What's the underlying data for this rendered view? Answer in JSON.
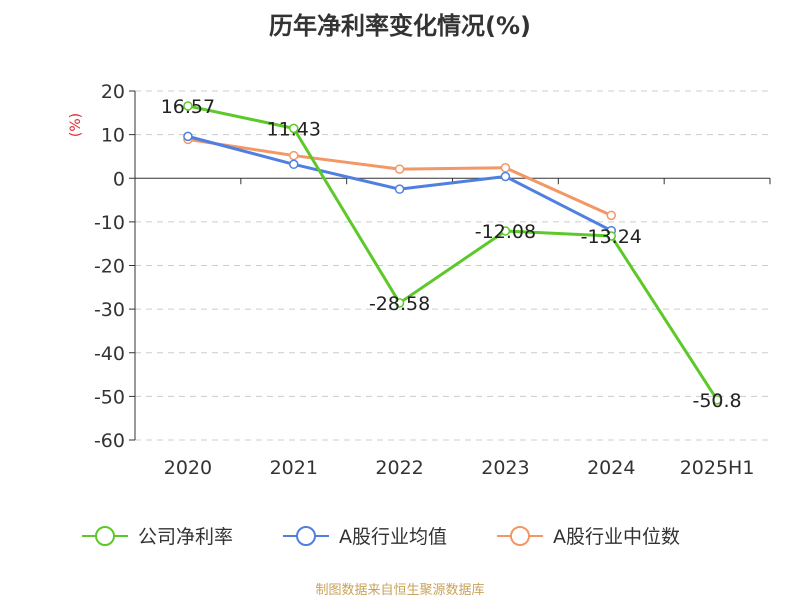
{
  "source": "制图数据来自恒生聚源数据库",
  "colors": {
    "axis": "#333333",
    "grid": "#cccccc"
  },
  "chart_data": {
    "type": "line",
    "title": "历年净利率变化情况(%)",
    "ylabel": "(%)",
    "xlabel": "",
    "categories": [
      "2020",
      "2021",
      "2022",
      "2023",
      "2024",
      "2025H1"
    ],
    "ylim": [
      -60,
      20
    ],
    "yticks": [
      20,
      10,
      0,
      -10,
      -20,
      -30,
      -40,
      -50,
      -60
    ],
    "grid": true,
    "legend_position": "bottom",
    "series": [
      {
        "name": "公司净利率",
        "color": "#5cc928",
        "values": [
          16.57,
          11.43,
          -28.58,
          -12.08,
          -13.24,
          -50.8
        ],
        "labels": [
          "16.57",
          "11.43",
          "-28.58",
          "-12.08",
          "-13.24",
          "-50.8"
        ]
      },
      {
        "name": "A股行业均值",
        "color": "#4f7fe0",
        "values": [
          9.6,
          3.2,
          -2.5,
          0.4,
          -12.0,
          null
        ]
      },
      {
        "name": "A股行业中位数",
        "color": "#f39766",
        "values": [
          8.9,
          5.2,
          2.1,
          2.4,
          -8.5,
          null
        ]
      }
    ]
  }
}
